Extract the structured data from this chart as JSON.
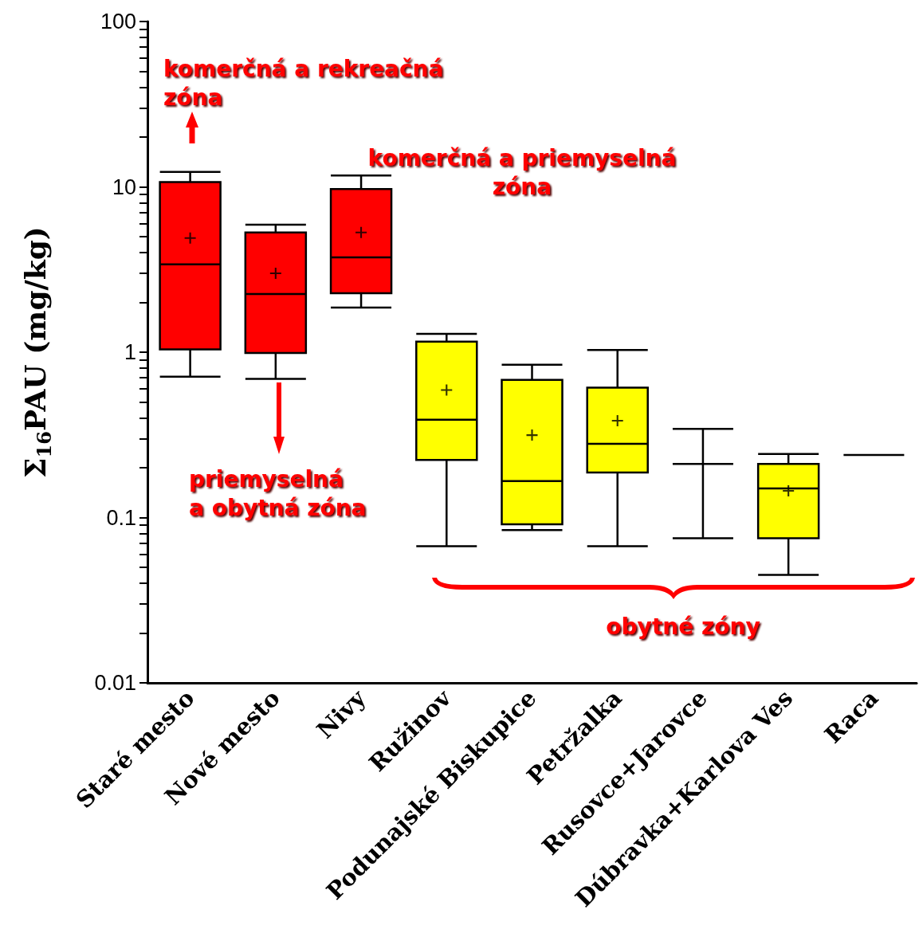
{
  "chart_data": {
    "type": "box",
    "ylabel": "Σ$_{16}$PAU (mg/kg)",
    "categories": [
      "Staré mesto",
      "Nové mesto",
      "Nivy",
      "Ružinov",
      "Podunajské Biskupice",
      "Petržalka",
      "Rusovce+Jarovce",
      "Dúbravka+Karlova Ves",
      "Raca"
    ],
    "colors": [
      "#ff0000",
      "#ff0000",
      "#ff0000",
      "#ffff00",
      "#ffff00",
      "#ffff00",
      null,
      "#ffff00",
      null
    ],
    "boxes": [
      {
        "low": 0.71,
        "q1": 1.04,
        "median": 3.4,
        "q3": 10.7,
        "high": 12.3,
        "mean": 4.9
      },
      {
        "low": 0.69,
        "q1": 0.99,
        "median": 2.25,
        "q3": 5.3,
        "high": 5.9,
        "mean": 3.0
      },
      {
        "low": 1.86,
        "q1": 2.27,
        "median": 3.75,
        "q3": 9.7,
        "high": 11.7,
        "mean": 5.3
      },
      {
        "low": 0.067,
        "q1": 0.223,
        "median": 0.39,
        "q3": 1.16,
        "high": 1.29,
        "mean": 0.59
      },
      {
        "low": 0.084,
        "q1": 0.091,
        "median": 0.166,
        "q3": 0.68,
        "high": 0.84,
        "mean": 0.315
      },
      {
        "low": 0.067,
        "q1": 0.187,
        "median": 0.279,
        "q3": 0.61,
        "high": 1.03,
        "mean": 0.385
      },
      {
        "low": 0.075,
        "q1": 0.211,
        "median": 0.211,
        "q3": 0.211,
        "high": 0.344
      },
      {
        "low": 0.045,
        "q1": 0.075,
        "median": 0.15,
        "q3": 0.211,
        "high": 0.242,
        "mean": 0.145
      },
      {
        "low": 0.239,
        "q1": 0.239,
        "median": 0.239,
        "q3": 0.239,
        "high": 0.239
      }
    ],
    "log": "y",
    "ylim": [
      0.01,
      100
    ],
    "yticks": [
      0.01,
      {
        "value": 0.02,
        "label": null
      },
      {
        "value": 0.03,
        "label": null
      },
      {
        "value": 0.04,
        "label": null
      },
      {
        "value": 0.05,
        "label": null
      },
      {
        "value": 0.06,
        "label": null
      },
      {
        "value": 0.07,
        "label": null
      },
      {
        "value": 0.08,
        "label": null
      },
      {
        "value": 0.09,
        "label": null
      },
      0.1,
      {
        "value": 0.2,
        "label": null
      },
      {
        "value": 0.3,
        "label": null
      },
      {
        "value": 0.4,
        "label": null
      },
      {
        "value": 0.5,
        "label": null
      },
      {
        "value": 0.6,
        "label": null
      },
      {
        "value": 0.7,
        "label": null
      },
      {
        "value": 0.8,
        "label": null
      },
      {
        "value": 0.9,
        "label": null
      },
      1,
      {
        "value": 2,
        "label": null
      },
      {
        "value": 3,
        "label": null
      },
      {
        "value": 4,
        "label": null
      },
      {
        "value": 5,
        "label": null
      },
      {
        "value": 6,
        "label": null
      },
      {
        "value": 7,
        "label": null
      },
      {
        "value": 8,
        "label": null
      },
      {
        "value": 9,
        "label": null
      },
      10,
      {
        "value": 20,
        "label": null
      },
      {
        "value": 30,
        "label": null
      },
      {
        "value": 40,
        "label": null
      },
      {
        "value": 50,
        "label": null
      },
      {
        "value": 60,
        "label": null
      },
      {
        "value": 70,
        "label": null
      },
      {
        "value": 80,
        "label": null
      },
      {
        "value": 90,
        "label": null
      },
      100
    ],
    "grid": false,
    "marker": "cross",
    "annotations": [
      "komerčná a rekreačná\nzóna",
      "komerčná a priemyselná\nzóna",
      "priemyselná\na obytná zóna",
      "obytné zóny"
    ]
  }
}
